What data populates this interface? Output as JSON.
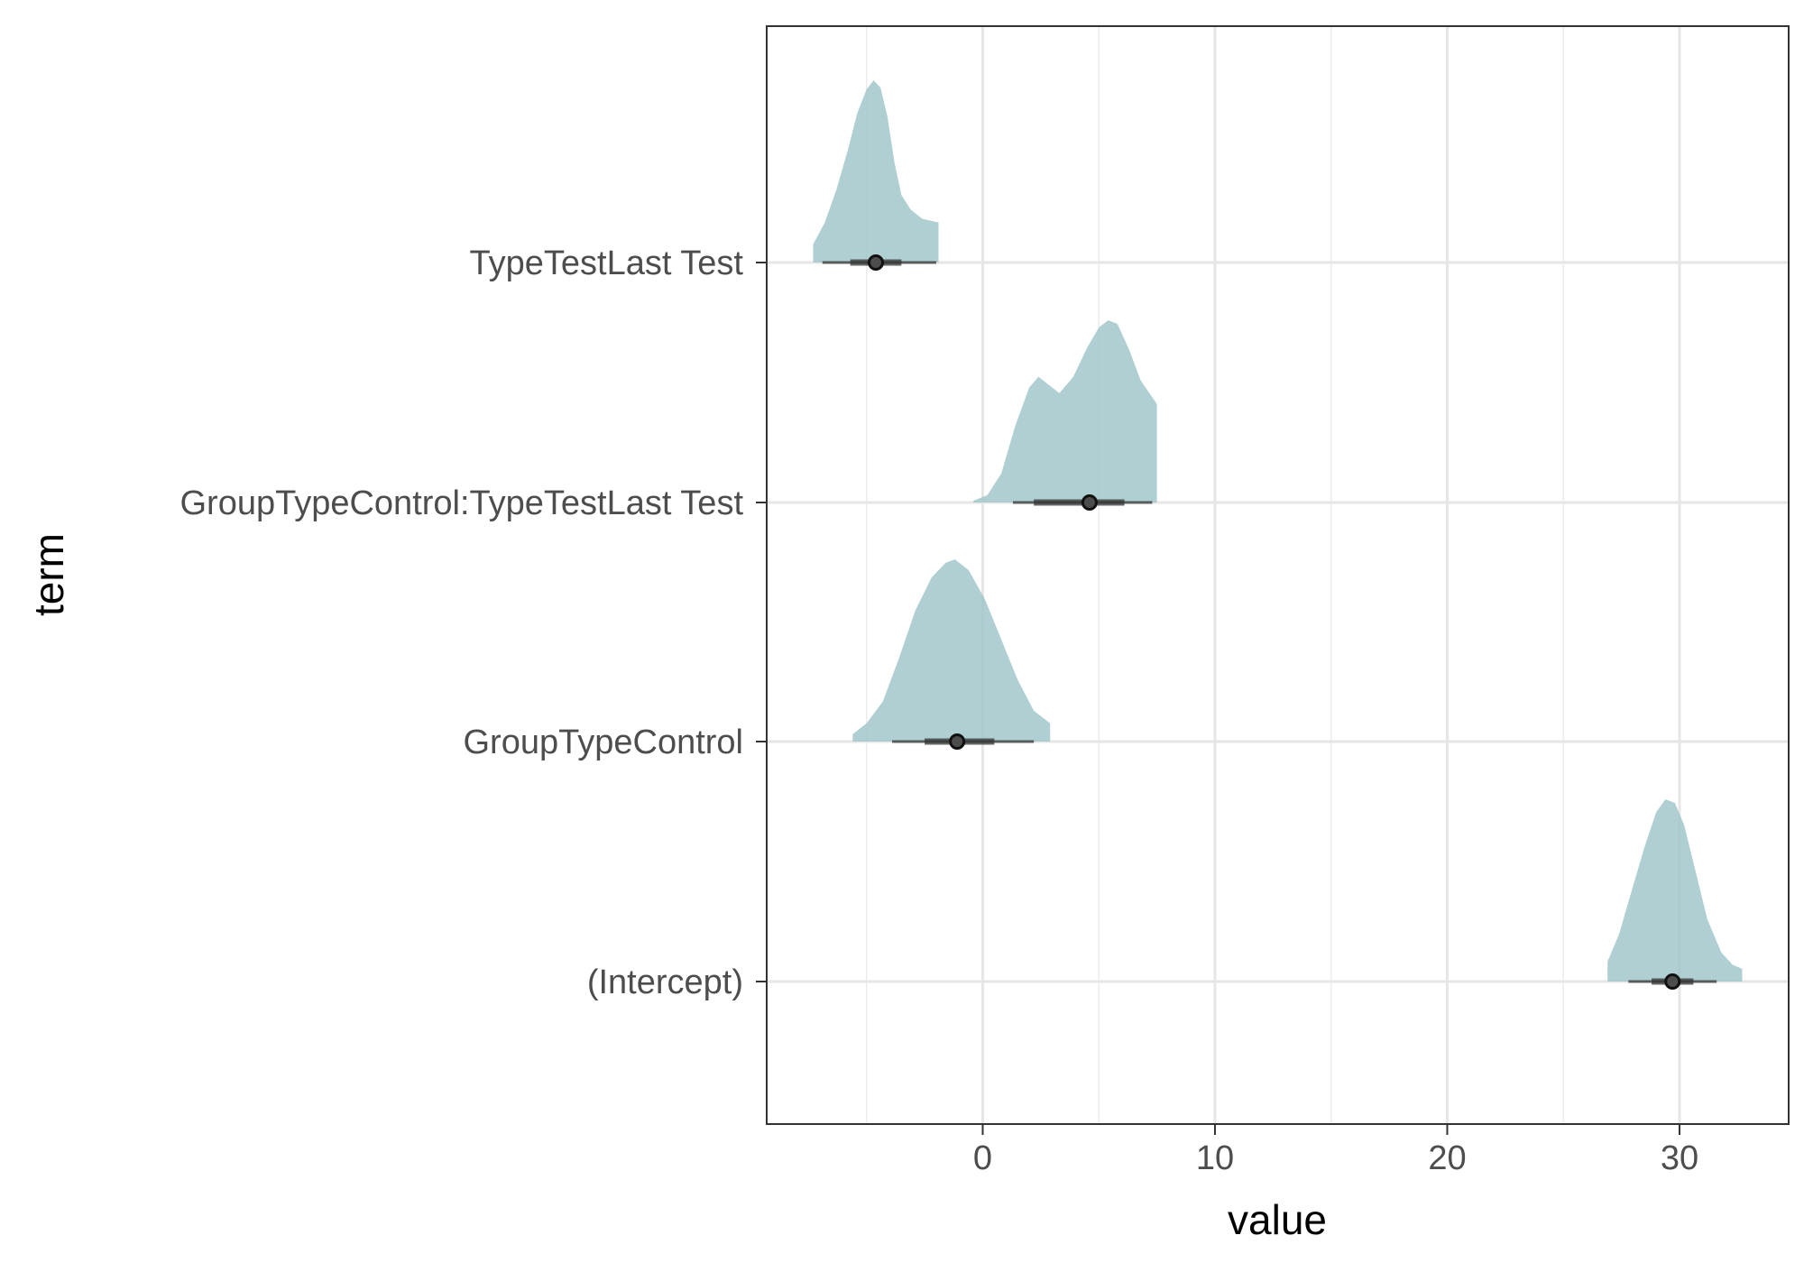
{
  "chart_data": {
    "type": "halfeye",
    "xlabel": "value",
    "ylabel": "term",
    "xlim": [
      -9.3,
      34.7
    ],
    "x_ticks": [
      0,
      10,
      20,
      30
    ],
    "x_tick_labels": [
      "0",
      "10",
      "20",
      "30"
    ],
    "grid": true,
    "fill_color": "#9fc5c8",
    "terms": [
      {
        "label": "TypeTestLast Test",
        "median": -4.6,
        "interval_66": [
          -5.7,
          -3.5
        ],
        "interval_95": [
          -6.9,
          -2.0
        ],
        "range": [
          -7.3,
          -1.9
        ],
        "density": [
          [
            -7.3,
            0.1
          ],
          [
            -6.8,
            0.22
          ],
          [
            -6.3,
            0.4
          ],
          [
            -5.8,
            0.62
          ],
          [
            -5.4,
            0.82
          ],
          [
            -5.0,
            0.95
          ],
          [
            -4.7,
            1.0
          ],
          [
            -4.4,
            0.96
          ],
          [
            -4.1,
            0.8
          ],
          [
            -3.8,
            0.55
          ],
          [
            -3.5,
            0.37
          ],
          [
            -3.1,
            0.29
          ],
          [
            -2.6,
            0.24
          ],
          [
            -1.9,
            0.22
          ]
        ]
      },
      {
        "label": "GroupTypeControl:TypeTestLast Test",
        "median": 4.6,
        "interval_66": [
          2.2,
          6.1
        ],
        "interval_95": [
          1.3,
          7.3
        ],
        "range": [
          -0.4,
          7.5
        ],
        "density": [
          [
            -0.4,
            0.01
          ],
          [
            0.2,
            0.04
          ],
          [
            0.8,
            0.16
          ],
          [
            1.4,
            0.42
          ],
          [
            2.0,
            0.63
          ],
          [
            2.4,
            0.69
          ],
          [
            2.9,
            0.64
          ],
          [
            3.3,
            0.6
          ],
          [
            3.9,
            0.69
          ],
          [
            4.5,
            0.85
          ],
          [
            5.0,
            0.96
          ],
          [
            5.4,
            1.0
          ],
          [
            5.8,
            0.98
          ],
          [
            6.3,
            0.84
          ],
          [
            6.8,
            0.67
          ],
          [
            7.5,
            0.54
          ]
        ]
      },
      {
        "label": "GroupTypeControl",
        "median": -1.1,
        "interval_66": [
          -2.5,
          0.5
        ],
        "interval_95": [
          -3.9,
          2.2
        ],
        "range": [
          -5.6,
          2.9
        ],
        "density": [
          [
            -5.6,
            0.04
          ],
          [
            -5.0,
            0.1
          ],
          [
            -4.3,
            0.22
          ],
          [
            -3.6,
            0.46
          ],
          [
            -2.9,
            0.72
          ],
          [
            -2.2,
            0.9
          ],
          [
            -1.6,
            0.98
          ],
          [
            -1.2,
            1.0
          ],
          [
            -0.6,
            0.94
          ],
          [
            0.1,
            0.78
          ],
          [
            0.8,
            0.56
          ],
          [
            1.5,
            0.34
          ],
          [
            2.2,
            0.17
          ],
          [
            2.9,
            0.1
          ]
        ]
      },
      {
        "label": "(Intercept)",
        "median": 29.7,
        "interval_66": [
          28.8,
          30.6
        ],
        "interval_95": [
          27.8,
          31.6
        ],
        "range": [
          26.9,
          32.7
        ],
        "density": [
          [
            26.9,
            0.11
          ],
          [
            27.4,
            0.26
          ],
          [
            27.9,
            0.48
          ],
          [
            28.5,
            0.74
          ],
          [
            29.0,
            0.93
          ],
          [
            29.4,
            1.0
          ],
          [
            29.8,
            0.98
          ],
          [
            30.2,
            0.86
          ],
          [
            30.7,
            0.6
          ],
          [
            31.2,
            0.34
          ],
          [
            31.8,
            0.16
          ],
          [
            32.3,
            0.09
          ],
          [
            32.7,
            0.07
          ]
        ]
      }
    ]
  }
}
